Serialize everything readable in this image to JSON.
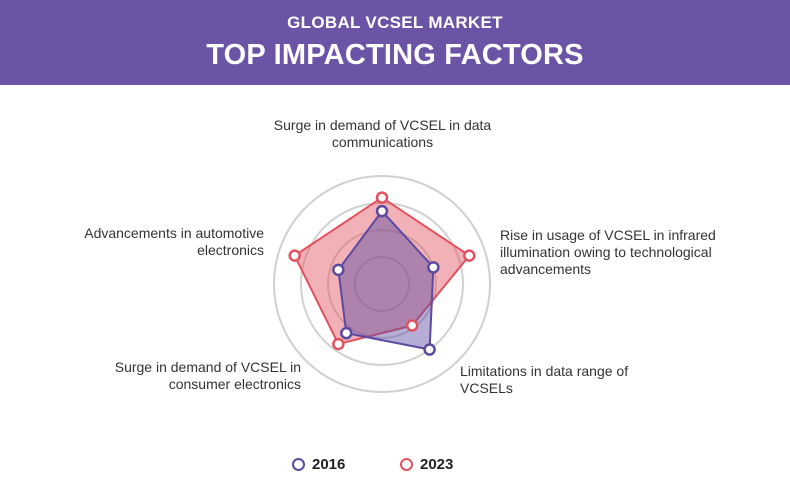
{
  "header": {
    "title_line1": "GLOBAL VCSEL MARKET",
    "title_line2": "TOP IMPACTING FACTORS"
  },
  "colors": {
    "header_bg": "#6b54a6",
    "series_2016": "#5b4aa0",
    "series_2023": "#e0525f",
    "rings": "#d0d0d0"
  },
  "chart_data": {
    "type": "radar",
    "axes": [
      "Surge in demand of VCSEL in data communications",
      "Rise in usage of VCSEL in infrared illumination owing to technological advancements",
      "Limitations in data range of VCSELs",
      "Surge in demand of VCSEL in consumer electronics",
      "Advancements in automotive electronics"
    ],
    "axis_label_lines": [
      [
        "Surge in demand of VCSEL in data",
        "communications"
      ],
      [
        "Rise in usage of VCSEL in infrared",
        "illumination owing to technological",
        "advancements"
      ],
      [
        "Limitations in data range of",
        "VCSELs"
      ],
      [
        "Surge in demand of VCSEL in",
        "consumer electronics"
      ],
      [
        "Advancements in automotive",
        "electronics"
      ]
    ],
    "scale_max": 4,
    "rings": 4,
    "series": [
      {
        "name": "2016",
        "values": [
          2.7,
          2.0,
          3.0,
          2.25,
          1.7
        ]
      },
      {
        "name": "2023",
        "values": [
          3.2,
          3.4,
          1.9,
          2.75,
          3.4
        ]
      }
    ],
    "legend_position": "bottom-center"
  }
}
